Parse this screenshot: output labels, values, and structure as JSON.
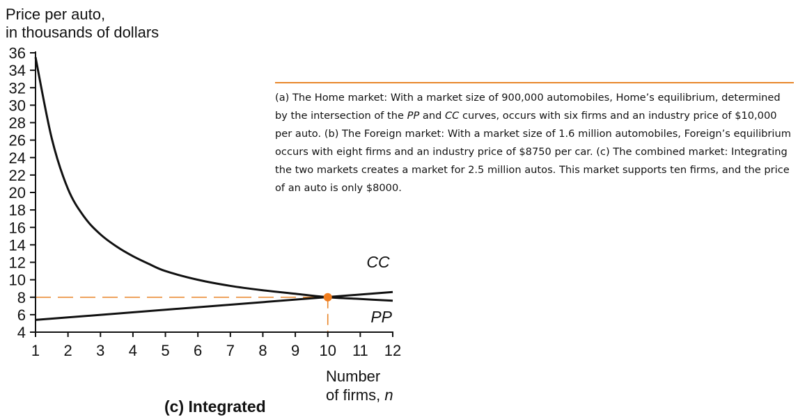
{
  "chart_data": {
    "type": "line",
    "ylabel_line1": "Price per auto,",
    "ylabel_line2": "in thousands of dollars",
    "xlabel_line1": "Number",
    "xlabel_line2_prefix": "of firms, ",
    "xlabel_line2_var": "n",
    "subtitle": "(c) Integrated",
    "xlim": [
      1,
      12
    ],
    "ylim": [
      4,
      36
    ],
    "xticks": [
      1,
      2,
      3,
      4,
      5,
      6,
      7,
      8,
      9,
      10,
      11,
      12
    ],
    "yticks": [
      4,
      6,
      8,
      10,
      12,
      14,
      16,
      18,
      20,
      22,
      24,
      26,
      28,
      30,
      32,
      34,
      36
    ],
    "series": [
      {
        "name": "CC",
        "color": "#111111",
        "x": [
          1,
          1.5,
          2,
          2.5,
          3,
          3.5,
          4,
          4.5,
          5,
          6,
          7,
          8,
          9,
          10,
          11,
          12
        ],
        "y": [
          35.5,
          26.2,
          20.4,
          17.2,
          15.2,
          13.8,
          12.7,
          11.8,
          11.0,
          10.0,
          9.3,
          8.8,
          8.4,
          8.0,
          7.8,
          7.6
        ]
      },
      {
        "name": "PP",
        "color": "#111111",
        "x": [
          1,
          12
        ],
        "y": [
          5.4,
          8.6
        ]
      }
    ],
    "equilibrium": {
      "x": 10,
      "y": 8,
      "color": "#f07d1e"
    },
    "guide_color": "#e8862a"
  },
  "caption": {
    "part1": "(a) The Home market: With a market size of 900,000 automobiles, Home’s equilibrium, determined by the intersection of the ",
    "pp": "PP",
    "part2": " and ",
    "cc": "CC",
    "part3": " curves, occurs with six firms and an industry price of $10,000 per auto. (b) The Foreign market: With a market size of 1.6 million automobiles, Foreign’s equilibrium occurs with eight firms and an industry price of $8750 per car. (c) The combined market: Integrating the two markets creates a market for 2.5 million autos. This market supports ten firms, and the price of an auto is only $8000."
  }
}
